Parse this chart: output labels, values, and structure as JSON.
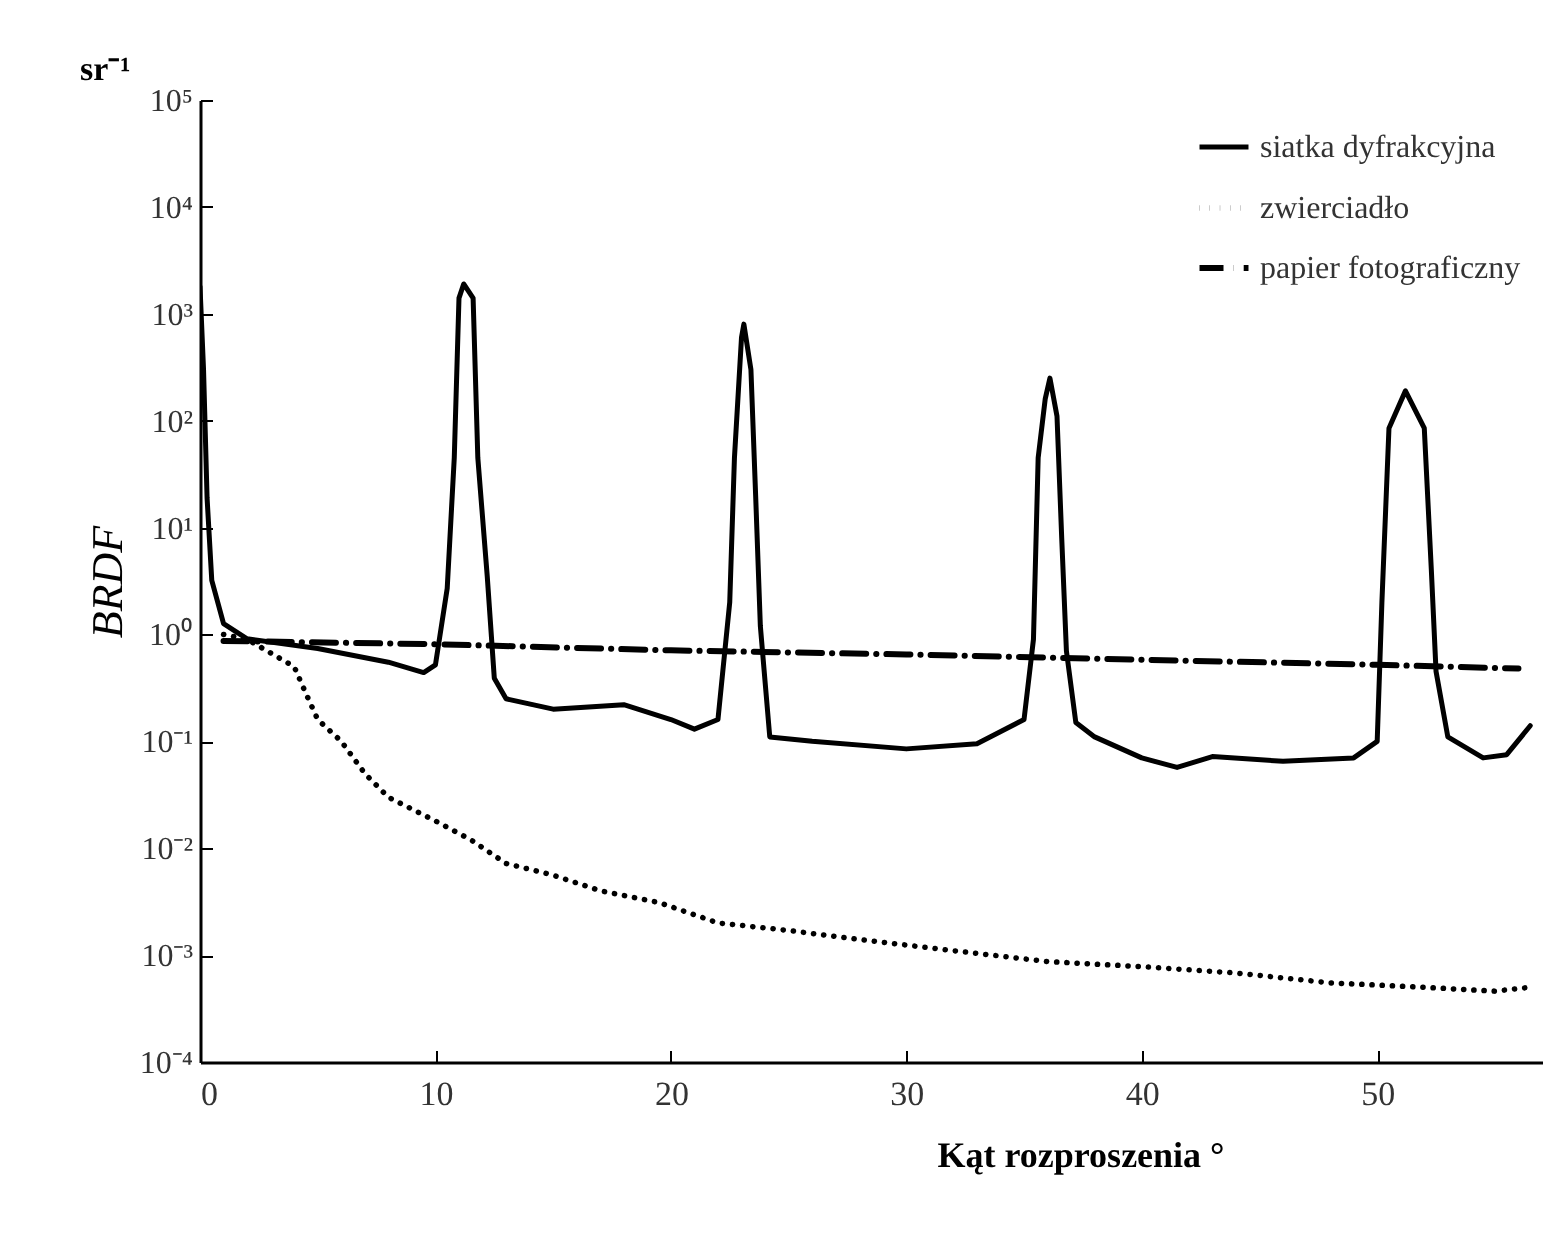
{
  "chart_data": {
    "type": "line",
    "xlabel": "Kąt rozproszenia  °",
    "ylabel": "BRDF",
    "annotations": [
      "sr⁻¹"
    ],
    "log": "y",
    "grid": false,
    "legend": "top right",
    "xlim": [
      0,
      57
    ],
    "xticks": [
      0,
      10,
      20,
      30,
      40,
      50
    ],
    "ylim": [
      0.0001,
      100000
    ],
    "yticks": [
      {
        "value": 0.0001,
        "label": "10⁻⁴"
      },
      {
        "value": 0.001,
        "label": "10⁻³"
      },
      {
        "value": 0.01,
        "label": "10⁻²"
      },
      {
        "value": 0.1,
        "label": "10⁻¹"
      },
      {
        "value": 1,
        "label": "10⁰"
      },
      {
        "value": 10,
        "label": "10¹"
      },
      {
        "value": 100,
        "label": "10²"
      },
      {
        "value": 1000,
        "label": "10³"
      },
      {
        "value": 10000,
        "label": "10⁴"
      },
      {
        "value": 100000,
        "label": "10⁵"
      }
    ],
    "series": [
      {
        "name": "siatka dyfrakcyjna",
        "color": "#000000",
        "line_style": "solid",
        "x": [
          0,
          0.15,
          0.3,
          0.5,
          1,
          2,
          5,
          8,
          9.5,
          10,
          10.5,
          10.8,
          11,
          11.2,
          11.6,
          11.8,
          12.2,
          12.5,
          13,
          15,
          18,
          20,
          21,
          22,
          22.5,
          22.7,
          23,
          23.1,
          23.4,
          23.6,
          23.8,
          24.2,
          26,
          30,
          33,
          35,
          35.4,
          35.6,
          35.9,
          36.1,
          36.4,
          36.6,
          36.8,
          37.2,
          38,
          40,
          41.5,
          43,
          46,
          49,
          50,
          50.2,
          50.5,
          51.2,
          52,
          52.3,
          52.5,
          53,
          54.5,
          55.5,
          56.5
        ],
        "values": [
          1800,
          300,
          19,
          3.2,
          1.26,
          0.91,
          0.74,
          0.55,
          0.44,
          0.52,
          2.7,
          45,
          1400,
          1900,
          1400,
          45,
          3.5,
          0.39,
          0.25,
          0.2,
          0.22,
          0.16,
          0.13,
          0.16,
          2,
          45,
          600,
          800,
          300,
          20,
          1.2,
          0.11,
          0.1,
          0.085,
          0.095,
          0.16,
          0.9,
          45,
          160,
          250,
          110,
          8,
          0.7,
          0.15,
          0.11,
          0.07,
          0.057,
          0.072,
          0.065,
          0.07,
          0.1,
          2,
          85,
          190,
          85,
          4,
          0.45,
          0.11,
          0.07,
          0.075,
          0.14
        ]
      },
      {
        "name": "zwierciadło",
        "color": "#000000",
        "line_style": "dotted",
        "x": [
          1,
          2,
          4,
          4.5,
          5,
          6,
          7,
          8,
          10,
          11.5,
          13,
          15,
          17,
          19.5,
          22,
          25,
          28,
          32,
          36,
          40,
          44,
          48,
          52,
          55,
          56.5
        ],
        "values": [
          1,
          0.9,
          0.5,
          0.28,
          0.16,
          0.1,
          0.05,
          0.03,
          0.018,
          0.012,
          0.0072,
          0.0056,
          0.004,
          0.0031,
          0.002,
          0.0017,
          0.0014,
          0.0011,
          0.00087,
          0.00078,
          0.00068,
          0.00055,
          0.0005,
          0.00046,
          0.0005
        ]
      },
      {
        "name": "papier fotograficzny",
        "color": "#000000",
        "line_style": "dashdot",
        "x": [
          1,
          10,
          20,
          30,
          40,
          50,
          56
        ],
        "values": [
          0.87,
          0.81,
          0.71,
          0.65,
          0.58,
          0.52,
          0.48
        ]
      }
    ]
  }
}
